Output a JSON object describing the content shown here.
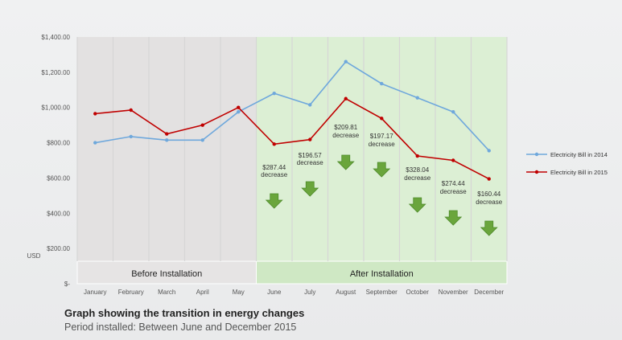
{
  "chart_data": {
    "type": "line",
    "categories": [
      "January",
      "February",
      "March",
      "April",
      "May",
      "June",
      "July",
      "August",
      "September",
      "October",
      "November",
      "December"
    ],
    "series": [
      {
        "name": "Electricity Bill in 2014",
        "color": "#6fa8dc",
        "values": [
          800,
          835,
          815,
          815,
          975,
          1080,
          1015,
          1260,
          1135,
          1055,
          975,
          755
        ]
      },
      {
        "name": "Electricity Bill in 2015",
        "color": "#c00000",
        "values": [
          965,
          985,
          850,
          900,
          1000,
          792,
          818,
          1050,
          938,
          725,
          700,
          595
        ]
      }
    ],
    "ylim": [
      0,
      1400
    ],
    "yticks": [
      {
        "value": 0,
        "label": "$-"
      },
      {
        "value": 200,
        "label": "$200.00"
      },
      {
        "value": 400,
        "label": "$400.00"
      },
      {
        "value": 600,
        "label": "$600.00"
      },
      {
        "value": 800,
        "label": "$800.00"
      },
      {
        "value": 1000,
        "label": "$1,000.00"
      },
      {
        "value": 1200,
        "label": "$1,200.00"
      },
      {
        "value": 1400,
        "label": "$1,400.00"
      }
    ],
    "ylabel": "USD",
    "legend_position": "right",
    "grid": "vertical",
    "regions": [
      {
        "label": "Before Installation",
        "from": "January",
        "to": "May",
        "color": "#e3e1e1"
      },
      {
        "label": "After Installation",
        "from": "June",
        "to": "December",
        "color": "#dcefd4"
      }
    ],
    "annotations": [
      {
        "category": "June",
        "amount": "$287.44",
        "text": "decrease"
      },
      {
        "category": "July",
        "amount": "$196.57",
        "text": "decrease"
      },
      {
        "category": "August",
        "amount": "$209.81",
        "text": "decrease"
      },
      {
        "category": "September",
        "amount": "$197.17",
        "text": "decrease"
      },
      {
        "category": "October",
        "amount": "$328.04",
        "text": "decrease"
      },
      {
        "category": "November",
        "amount": "$274.44",
        "text": "decrease"
      },
      {
        "category": "December",
        "amount": "$160.44",
        "text": "decrease"
      }
    ],
    "arrow_color": "#6aa53c"
  },
  "caption": {
    "title": "Graph showing the transition in energy changes",
    "subtitle": "Period installed: Between June and December 2015"
  }
}
